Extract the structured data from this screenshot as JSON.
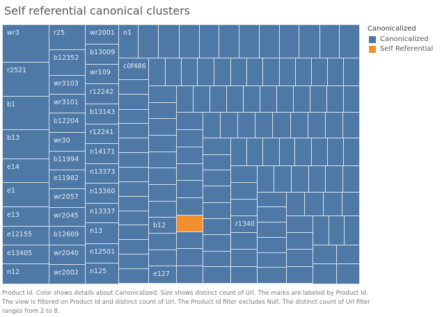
{
  "chart_data": {
    "type": "treemap",
    "title": "Self referential canonical clusters",
    "legend": {
      "title": "Canonicalized",
      "position": "top-right",
      "entries": [
        {
          "label": "Canonicalized",
          "color": "#4e79a7"
        },
        {
          "label": "Self Referential",
          "color": "#f28e2b"
        }
      ]
    },
    "labels": [
      "wr3",
      "r2521",
      "b1",
      "b13",
      "e14",
      "e1",
      "e13",
      "e12155",
      "e13405",
      "n12",
      "r25",
      "b12352",
      "wr3103",
      "wr3101",
      "b12204",
      "wr30",
      "b11994",
      "e11982",
      "wr2057",
      "wr2045",
      "b12609",
      "wr2040",
      "wr2002",
      "wr2001",
      "b13009",
      "wr109",
      "r12242",
      "b13143",
      "r12241",
      "n14171",
      "n13373",
      "n13360",
      "n13337",
      "n13",
      "n12501",
      "n125",
      "n1",
      "c0f486",
      "b12",
      "e127",
      "r1340"
    ],
    "self_referential_marks": 1,
    "size_measure": "distinct count of Url",
    "filter_range": [
      2,
      8
    ]
  },
  "footer": "Product Id.  Color shows details about Canonicalized.  Size shows distinct count of Url.  The marks are labeled by Product Id. The view is filtered on Product Id and distinct count of Url. The Product Id filter excludes Null. The distinct count of Url filter ranges from 2 to 8."
}
